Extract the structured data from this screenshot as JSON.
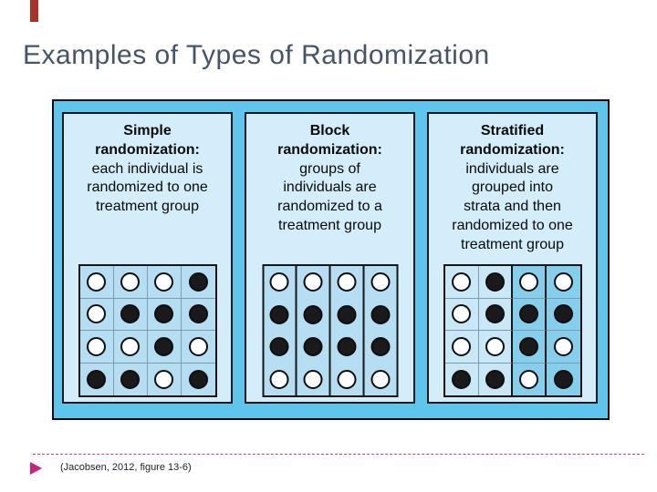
{
  "title": "Examples of Types of Randomization",
  "panels": [
    {
      "type": "simple",
      "heading_lines": [
        "Simple",
        "randomization:"
      ],
      "body_lines": [
        "each individual is",
        "randomized to one",
        "treatment group"
      ],
      "grid": {
        "kind": "cells",
        "legend": "1=filled(black) 0=empty(white)",
        "rows": [
          [
            0,
            0,
            0,
            1
          ],
          [
            0,
            1,
            1,
            1
          ],
          [
            0,
            0,
            1,
            0
          ],
          [
            1,
            1,
            0,
            1
          ]
        ]
      }
    },
    {
      "type": "block",
      "heading_lines": [
        "Block",
        "randomization:"
      ],
      "body_lines": [
        "groups of",
        "individuals are",
        "randomized to a",
        "treatment group"
      ],
      "grid": {
        "kind": "blocks",
        "legend": "each column is one block, top to bottom",
        "columns": [
          [
            0,
            1,
            1,
            0
          ],
          [
            0,
            1,
            1,
            0
          ],
          [
            0,
            1,
            1,
            0
          ],
          [
            0,
            1,
            1,
            0
          ]
        ]
      }
    },
    {
      "type": "stratified",
      "heading_lines": [
        "Stratified",
        "randomization:"
      ],
      "body_lines": [
        "individuals are",
        "grouped into",
        "strata and then",
        "randomized to one",
        "treatment group"
      ],
      "grid": {
        "kind": "cells",
        "legend": "two strata: left 2 columns light, right 2 columns dark",
        "rows": [
          [
            0,
            1,
            0,
            0
          ],
          [
            0,
            1,
            1,
            1
          ],
          [
            0,
            0,
            1,
            0
          ],
          [
            1,
            1,
            0,
            1
          ]
        ],
        "column_shades": [
          "light",
          "light",
          "dark",
          "dark"
        ],
        "thick_dividers_after": [
          1,
          2
        ]
      }
    }
  ],
  "footer": {
    "citation": "(Jacobsen, 2012, figure 13-6)",
    "bullet_icon": "play-triangle-icon"
  },
  "colors": {
    "title_text": "#44546A",
    "board_bg": "#5EC5ED",
    "panel_bg": "#D3EDFA",
    "cell_bg": "#B5DEF2",
    "cell_bg_light": "#C8E8F7",
    "cell_bg_dark": "#85CEEC",
    "grid_line": "#7E9BAB",
    "border_black": "#151515",
    "circle_filled": "#1A1A1A",
    "circle_empty": "#FFFFFF",
    "accent_magenta": "#CE2179",
    "dash_line": "#C23E8F",
    "top_accent_red": "#A93226",
    "citation_text": "#222222"
  }
}
